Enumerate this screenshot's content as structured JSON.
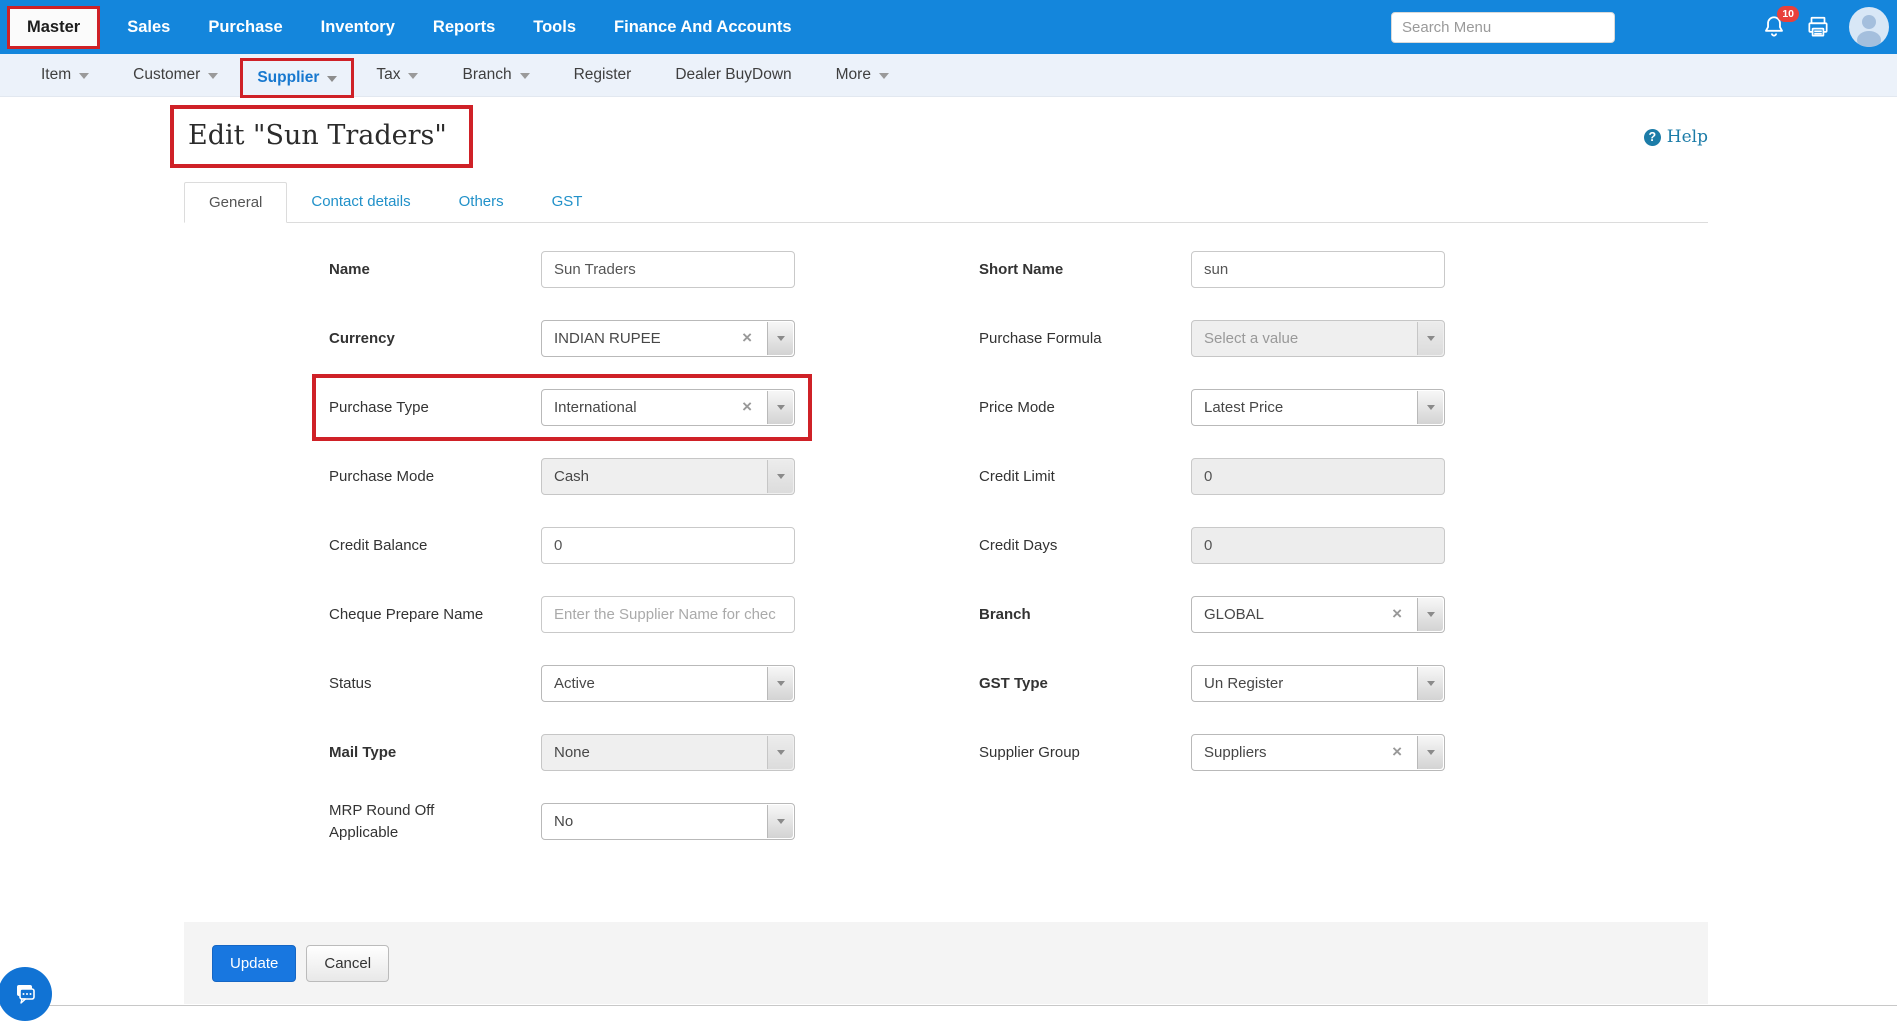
{
  "top_nav": {
    "items": [
      {
        "label": "Master",
        "active": true,
        "highlighted": true
      },
      {
        "label": "Sales"
      },
      {
        "label": "Purchase"
      },
      {
        "label": "Inventory"
      },
      {
        "label": "Reports"
      },
      {
        "label": "Tools"
      },
      {
        "label": "Finance And Accounts"
      }
    ],
    "search": {
      "placeholder": "Search Menu"
    },
    "notification_badge": "10"
  },
  "sub_nav": {
    "items": [
      {
        "label": "Item",
        "dropdown": true
      },
      {
        "label": "Customer",
        "dropdown": true
      },
      {
        "label": "Supplier",
        "dropdown": true,
        "active": true,
        "highlighted": true
      },
      {
        "label": "Tax",
        "dropdown": true
      },
      {
        "label": "Branch",
        "dropdown": true
      },
      {
        "label": "Register"
      },
      {
        "label": "Dealer BuyDown"
      },
      {
        "label": "More",
        "dropdown": true
      }
    ]
  },
  "page": {
    "title": "Edit \"Sun Traders\"",
    "help_label": "Help"
  },
  "tabs": [
    {
      "label": "General",
      "active": true
    },
    {
      "label": "Contact details"
    },
    {
      "label": "Others"
    },
    {
      "label": "GST"
    }
  ],
  "form": {
    "left": [
      {
        "label": "Name",
        "bold": true,
        "type": "text",
        "value": "Sun Traders"
      },
      {
        "label": "Currency",
        "bold": true,
        "type": "select",
        "value": "INDIAN RUPEE",
        "clearable": true
      },
      {
        "label": "Purchase Type",
        "type": "select",
        "value": "International",
        "clearable": true,
        "highlighted": true
      },
      {
        "label": "Purchase Mode",
        "type": "select",
        "value": "Cash",
        "grey": true
      },
      {
        "label": "Credit Balance",
        "type": "text",
        "value": "0"
      },
      {
        "label": "Cheque Prepare Name",
        "type": "text",
        "placeholder": "Enter the Supplier Name for chec"
      },
      {
        "label": "Status",
        "type": "select",
        "value": "Active"
      },
      {
        "label": "Mail Type",
        "bold": true,
        "type": "select",
        "value": "None",
        "grey": true
      },
      {
        "label": "MRP Round Off Applicable",
        "type": "select",
        "value": "No"
      }
    ],
    "right": [
      {
        "label": "Short Name",
        "bold": true,
        "type": "text",
        "value": "sun"
      },
      {
        "label": "Purchase Formula",
        "type": "select",
        "placeholder": "Select a value",
        "grey": true
      },
      {
        "label": "Price Mode",
        "type": "select",
        "value": "Latest Price"
      },
      {
        "label": "Credit Limit",
        "type": "text",
        "value": "0",
        "grey": true
      },
      {
        "label": "Credit Days",
        "type": "text",
        "value": "0",
        "grey": true
      },
      {
        "label": "Branch",
        "bold": true,
        "type": "select",
        "value": "GLOBAL",
        "clearable": true
      },
      {
        "label": "GST Type",
        "bold": true,
        "type": "select",
        "value": "Un Register"
      },
      {
        "label": "Supplier Group",
        "type": "select",
        "value": "Suppliers",
        "clearable": true
      }
    ]
  },
  "footer": {
    "update_label": "Update",
    "cancel_label": "Cancel"
  },
  "icons": {
    "clear": "×",
    "question": "?"
  },
  "colors": {
    "nav_blue": "#1486dc",
    "sub_nav_bg": "#ecf2fa",
    "highlight_red": "#cf2127",
    "tab_link_blue": "#2191c9",
    "active_menu_blue": "#1778cf",
    "update_blue": "#1877e0",
    "help_teal": "#1c7ca8",
    "badge_red": "#e8403a"
  }
}
